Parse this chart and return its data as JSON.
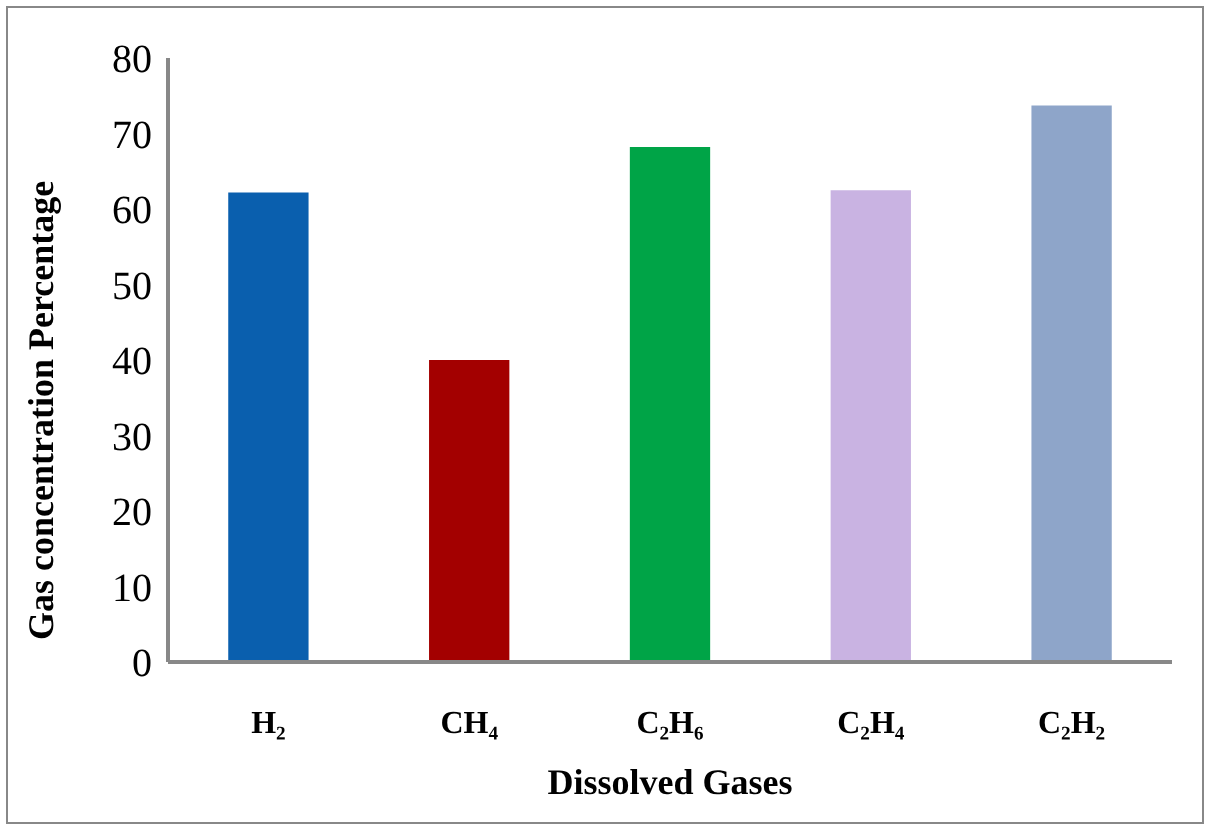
{
  "chart_data": {
    "type": "bar",
    "xlabel": "Dissolved Gases",
    "ylabel": "Gas concentration Percentage",
    "categories": [
      "H₂",
      "CH₄",
      "C₂H₆",
      "C₂H₄",
      "C₂H₂"
    ],
    "values": [
      62.2,
      40,
      68.2,
      62.5,
      73.7
    ],
    "colors": [
      "#0a5fae",
      "#a30000",
      "#00a447",
      "#c9b3e2",
      "#8ea5c9"
    ],
    "ylim": [
      0,
      80
    ],
    "yticks": [
      0,
      10,
      20,
      30,
      40,
      50,
      60,
      70,
      80
    ],
    "grid": false,
    "legend": false
  }
}
